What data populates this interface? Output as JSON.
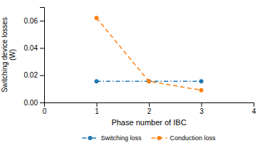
{
  "chart_data": {
    "type": "line",
    "xlabel": "Phase number of IBC",
    "ylabel": "Switching device losses\n(W)",
    "x": [
      1,
      2,
      3
    ],
    "series": [
      {
        "name": "Switching loss",
        "values": [
          0.0155,
          0.0155,
          0.0155
        ],
        "line_style": "dashdot",
        "marker": "circle"
      },
      {
        "name": "Conduction loss",
        "values": [
          0.062,
          0.0155,
          0.009
        ],
        "line_style": "dashed",
        "marker": "circle"
      }
    ],
    "xlim": [
      0,
      4
    ],
    "ylim": [
      0,
      0.07
    ],
    "xticks": [
      0,
      1,
      2,
      3,
      4
    ],
    "yticks": [
      {
        "value": 0,
        "label": "0.00"
      },
      0.02,
      0.04,
      0.06
    ],
    "legend": "bottom"
  }
}
